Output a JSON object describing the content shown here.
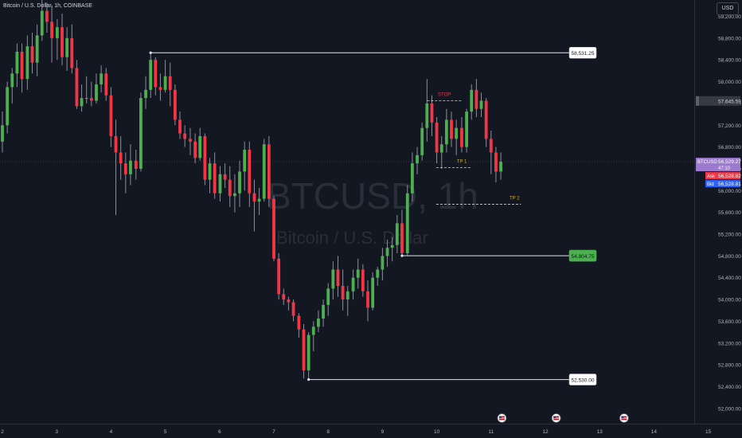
{
  "header": {
    "symbol_description": "Bitcoin / U.S. Dollar, 1h, COINBASE",
    "currency_button": "USD"
  },
  "watermark": {
    "ticker": "BTCUSD, 1h",
    "name": "Bitcoin / U.S. Dollar"
  },
  "colors": {
    "background": "#131722",
    "up": "#4caf50",
    "down": "#f23645",
    "grid": "#1e222d",
    "axis_text": "#b2b5be"
  },
  "icons": [
    "flag-us-icon",
    "flag-us-icon",
    "flag-us-icon"
  ],
  "chart_data": {
    "type": "candlestick",
    "timeframe": "1h",
    "xlabel": "",
    "ylabel": "",
    "ylim": [
      51720,
      59500
    ],
    "xlim": [
      2.0,
      15.05
    ],
    "x_ticks": [
      "2",
      "3",
      "4",
      "5",
      "6",
      "7",
      "8",
      "9",
      "10",
      "11",
      "12",
      "13",
      "14",
      "15"
    ],
    "y_ticks": [
      "52,000.00",
      "52,400.00",
      "52,800.00",
      "53,200.00",
      "53,600.00",
      "54,000.00",
      "54,400.00",
      "54,800.00",
      "55,200.00",
      "55,600.00",
      "56,000.00",
      "56,400.00",
      "56,800.00",
      "57,200.00",
      "57,600.00",
      "58,000.00",
      "58,400.00",
      "58,800.00",
      "59,200.00"
    ],
    "grid": false,
    "candles": [
      {
        "x": 2.0,
        "o": 56900,
        "h": 57450,
        "l": 56700,
        "c": 57200
      },
      {
        "x": 2.09,
        "o": 57200,
        "h": 58000,
        "l": 57050,
        "c": 57900
      },
      {
        "x": 2.18,
        "o": 57900,
        "h": 58250,
        "l": 57600,
        "c": 58150
      },
      {
        "x": 2.27,
        "o": 58150,
        "h": 58700,
        "l": 57900,
        "c": 58550
      },
      {
        "x": 2.36,
        "o": 58550,
        "h": 58700,
        "l": 57800,
        "c": 58050
      },
      {
        "x": 2.46,
        "o": 58050,
        "h": 58850,
        "l": 57850,
        "c": 58650
      },
      {
        "x": 2.55,
        "o": 58650,
        "h": 58900,
        "l": 58150,
        "c": 58350
      },
      {
        "x": 2.64,
        "o": 58350,
        "h": 59050,
        "l": 58100,
        "c": 58850
      },
      {
        "x": 2.73,
        "o": 58850,
        "h": 59500,
        "l": 58750,
        "c": 59300
      },
      {
        "x": 2.82,
        "o": 59300,
        "h": 59450,
        "l": 58900,
        "c": 59100
      },
      {
        "x": 2.91,
        "o": 59100,
        "h": 59400,
        "l": 58350,
        "c": 58800
      },
      {
        "x": 3.01,
        "o": 58800,
        "h": 59150,
        "l": 58400,
        "c": 59000
      },
      {
        "x": 3.1,
        "o": 59000,
        "h": 59250,
        "l": 58300,
        "c": 58450
      },
      {
        "x": 3.19,
        "o": 58450,
        "h": 59000,
        "l": 58200,
        "c": 58800
      },
      {
        "x": 3.28,
        "o": 58800,
        "h": 59050,
        "l": 58150,
        "c": 58250
      },
      {
        "x": 3.37,
        "o": 58250,
        "h": 58400,
        "l": 57500,
        "c": 57550
      },
      {
        "x": 3.46,
        "o": 57550,
        "h": 57950,
        "l": 57450,
        "c": 57700
      },
      {
        "x": 3.55,
        "o": 57700,
        "h": 58100,
        "l": 57600,
        "c": 57700
      },
      {
        "x": 3.64,
        "o": 57700,
        "h": 58000,
        "l": 57550,
        "c": 57650
      },
      {
        "x": 3.73,
        "o": 57650,
        "h": 58150,
        "l": 57600,
        "c": 57950
      },
      {
        "x": 3.82,
        "o": 57950,
        "h": 58300,
        "l": 57800,
        "c": 58150
      },
      {
        "x": 3.91,
        "o": 58150,
        "h": 58250,
        "l": 57650,
        "c": 57750
      },
      {
        "x": 4.0,
        "o": 57750,
        "h": 57900,
        "l": 56800,
        "c": 57000
      },
      {
        "x": 4.09,
        "o": 57000,
        "h": 57300,
        "l": 55550,
        "c": 56700
      },
      {
        "x": 4.18,
        "o": 56700,
        "h": 57000,
        "l": 56200,
        "c": 56500
      },
      {
        "x": 4.27,
        "o": 56500,
        "h": 56700,
        "l": 55950,
        "c": 56300
      },
      {
        "x": 4.36,
        "o": 56300,
        "h": 56850,
        "l": 56100,
        "c": 56550
      },
      {
        "x": 4.46,
        "o": 56550,
        "h": 56750,
        "l": 56200,
        "c": 56400
      },
      {
        "x": 4.55,
        "o": 56400,
        "h": 57800,
        "l": 56350,
        "c": 57700
      },
      {
        "x": 4.64,
        "o": 57700,
        "h": 58100,
        "l": 57500,
        "c": 57850
      },
      {
        "x": 4.73,
        "o": 57850,
        "h": 58530,
        "l": 57700,
        "c": 58400
      },
      {
        "x": 4.82,
        "o": 58400,
        "h": 58450,
        "l": 57750,
        "c": 57900
      },
      {
        "x": 4.91,
        "o": 57900,
        "h": 58150,
        "l": 57650,
        "c": 57850
      },
      {
        "x": 5.0,
        "o": 57850,
        "h": 58400,
        "l": 57800,
        "c": 58100
      },
      {
        "x": 5.09,
        "o": 58100,
        "h": 58350,
        "l": 57550,
        "c": 57850
      },
      {
        "x": 5.18,
        "o": 57850,
        "h": 57950,
        "l": 57200,
        "c": 57300
      },
      {
        "x": 5.27,
        "o": 57300,
        "h": 57450,
        "l": 56950,
        "c": 57050
      },
      {
        "x": 5.36,
        "o": 57050,
        "h": 57200,
        "l": 56800,
        "c": 56950
      },
      {
        "x": 5.46,
        "o": 56950,
        "h": 57150,
        "l": 56650,
        "c": 56900
      },
      {
        "x": 5.55,
        "o": 56900,
        "h": 57050,
        "l": 56500,
        "c": 56600
      },
      {
        "x": 5.64,
        "o": 56600,
        "h": 57150,
        "l": 56550,
        "c": 57000
      },
      {
        "x": 5.73,
        "o": 57000,
        "h": 57050,
        "l": 56100,
        "c": 56200
      },
      {
        "x": 5.82,
        "o": 56200,
        "h": 56600,
        "l": 55950,
        "c": 56500
      },
      {
        "x": 5.91,
        "o": 56500,
        "h": 56700,
        "l": 55850,
        "c": 55950
      },
      {
        "x": 6.01,
        "o": 55950,
        "h": 56450,
        "l": 55800,
        "c": 56300
      },
      {
        "x": 6.1,
        "o": 56300,
        "h": 56500,
        "l": 56050,
        "c": 56200
      },
      {
        "x": 6.19,
        "o": 56200,
        "h": 56450,
        "l": 55700,
        "c": 55900
      },
      {
        "x": 6.28,
        "o": 55900,
        "h": 56300,
        "l": 55600,
        "c": 55950
      },
      {
        "x": 6.37,
        "o": 55950,
        "h": 56550,
        "l": 55700,
        "c": 56350
      },
      {
        "x": 6.46,
        "o": 56350,
        "h": 56900,
        "l": 56000,
        "c": 56750
      },
      {
        "x": 6.55,
        "o": 56750,
        "h": 56900,
        "l": 55700,
        "c": 55950
      },
      {
        "x": 6.64,
        "o": 55950,
        "h": 56200,
        "l": 55250,
        "c": 55800
      },
      {
        "x": 6.73,
        "o": 55800,
        "h": 56050,
        "l": 55550,
        "c": 55850
      },
      {
        "x": 6.82,
        "o": 55850,
        "h": 56950,
        "l": 55800,
        "c": 56850
      },
      {
        "x": 6.91,
        "o": 56850,
        "h": 57000,
        "l": 55700,
        "c": 55850
      },
      {
        "x": 7.0,
        "o": 55850,
        "h": 55900,
        "l": 54700,
        "c": 54750
      },
      {
        "x": 7.09,
        "o": 54750,
        "h": 54850,
        "l": 54000,
        "c": 54100
      },
      {
        "x": 7.18,
        "o": 54100,
        "h": 54200,
        "l": 53900,
        "c": 54000
      },
      {
        "x": 7.27,
        "o": 54000,
        "h": 54050,
        "l": 53800,
        "c": 53950
      },
      {
        "x": 7.36,
        "o": 53950,
        "h": 54000,
        "l": 53600,
        "c": 53700
      },
      {
        "x": 7.46,
        "o": 53700,
        "h": 53750,
        "l": 53300,
        "c": 53450
      },
      {
        "x": 7.55,
        "o": 53450,
        "h": 53550,
        "l": 52550,
        "c": 52700
      },
      {
        "x": 7.64,
        "o": 52700,
        "h": 53400,
        "l": 52530,
        "c": 53350
      },
      {
        "x": 7.73,
        "o": 53350,
        "h": 53600,
        "l": 53050,
        "c": 53500
      },
      {
        "x": 7.82,
        "o": 53500,
        "h": 53800,
        "l": 53400,
        "c": 53650
      },
      {
        "x": 7.91,
        "o": 53650,
        "h": 54000,
        "l": 53500,
        "c": 53900
      },
      {
        "x": 8.0,
        "o": 53900,
        "h": 54300,
        "l": 53700,
        "c": 54200
      },
      {
        "x": 8.09,
        "o": 54200,
        "h": 54700,
        "l": 54000,
        "c": 54550
      },
      {
        "x": 8.18,
        "o": 54550,
        "h": 54800,
        "l": 54050,
        "c": 54250
      },
      {
        "x": 8.27,
        "o": 54250,
        "h": 54550,
        "l": 53800,
        "c": 54000
      },
      {
        "x": 8.36,
        "o": 54000,
        "h": 54250,
        "l": 53700,
        "c": 54150
      },
      {
        "x": 8.46,
        "o": 54150,
        "h": 54550,
        "l": 54000,
        "c": 54400
      },
      {
        "x": 8.55,
        "o": 54400,
        "h": 54750,
        "l": 54200,
        "c": 54550
      },
      {
        "x": 8.64,
        "o": 54550,
        "h": 54650,
        "l": 54050,
        "c": 54150
      },
      {
        "x": 8.73,
        "o": 54150,
        "h": 54350,
        "l": 53600,
        "c": 53850
      },
      {
        "x": 8.82,
        "o": 53850,
        "h": 54500,
        "l": 53800,
        "c": 54400
      },
      {
        "x": 8.91,
        "o": 54400,
        "h": 54600,
        "l": 54250,
        "c": 54550
      },
      {
        "x": 9.0,
        "o": 54550,
        "h": 54950,
        "l": 54350,
        "c": 54800
      },
      {
        "x": 9.09,
        "o": 54800,
        "h": 55100,
        "l": 54600,
        "c": 54950
      },
      {
        "x": 9.18,
        "o": 54950,
        "h": 55150,
        "l": 54700,
        "c": 55000
      },
      {
        "x": 9.27,
        "o": 55000,
        "h": 55550,
        "l": 54850,
        "c": 55400
      },
      {
        "x": 9.36,
        "o": 55400,
        "h": 55650,
        "l": 54804,
        "c": 54850
      },
      {
        "x": 9.46,
        "o": 54850,
        "h": 56100,
        "l": 54800,
        "c": 55950
      },
      {
        "x": 9.55,
        "o": 55950,
        "h": 56700,
        "l": 55800,
        "c": 56500
      },
      {
        "x": 9.64,
        "o": 56500,
        "h": 56800,
        "l": 56300,
        "c": 56650
      },
      {
        "x": 9.73,
        "o": 56650,
        "h": 57250,
        "l": 56550,
        "c": 57150
      },
      {
        "x": 9.82,
        "o": 57150,
        "h": 58050,
        "l": 56900,
        "c": 57600
      },
      {
        "x": 9.91,
        "o": 57600,
        "h": 57750,
        "l": 57000,
        "c": 57250
      },
      {
        "x": 10.0,
        "o": 57250,
        "h": 57350,
        "l": 56500,
        "c": 56700
      },
      {
        "x": 10.09,
        "o": 56700,
        "h": 57000,
        "l": 56400,
        "c": 56850
      },
      {
        "x": 10.18,
        "o": 56850,
        "h": 57500,
        "l": 56700,
        "c": 57300
      },
      {
        "x": 10.27,
        "o": 57300,
        "h": 57450,
        "l": 56800,
        "c": 56950
      },
      {
        "x": 10.36,
        "o": 56950,
        "h": 57300,
        "l": 56650,
        "c": 57150
      },
      {
        "x": 10.46,
        "o": 57150,
        "h": 57350,
        "l": 56700,
        "c": 56800
      },
      {
        "x": 10.55,
        "o": 56800,
        "h": 57500,
        "l": 56700,
        "c": 57450
      },
      {
        "x": 10.64,
        "o": 57450,
        "h": 57950,
        "l": 57300,
        "c": 57850
      },
      {
        "x": 10.73,
        "o": 57850,
        "h": 58050,
        "l": 57350,
        "c": 57500
      },
      {
        "x": 10.82,
        "o": 57500,
        "h": 57800,
        "l": 57350,
        "c": 57650
      },
      {
        "x": 10.91,
        "o": 57650,
        "h": 57700,
        "l": 56800,
        "c": 56950
      },
      {
        "x": 11.0,
        "o": 56950,
        "h": 57100,
        "l": 56300,
        "c": 56700
      },
      {
        "x": 11.09,
        "o": 56700,
        "h": 56800,
        "l": 56150,
        "c": 56350
      },
      {
        "x": 11.18,
        "o": 56350,
        "h": 56700,
        "l": 56200,
        "c": 56530
      }
    ],
    "annotations": {
      "horizontal_lines": [
        {
          "label": "58,531.25",
          "price": 58531.25,
          "x_start": 4.73
        },
        {
          "label": "54,804.75",
          "price": 54804.75,
          "x_start": 9.36
        },
        {
          "label": "52,530.00",
          "price": 52530.0,
          "x_start": 7.64
        }
      ],
      "levels": [
        {
          "label": "STOP",
          "price": 57650,
          "x_start": 9.82,
          "x_end": 10.46
        },
        {
          "label": "TP 1",
          "price": 56420,
          "x_start": 9.99,
          "x_end": 10.64
        },
        {
          "label": "TP 2",
          "price": 55750,
          "x_start": 9.99,
          "x_end": 11.55
        }
      ]
    },
    "price_labels": [
      {
        "label": "57,645.59"
      }
    ],
    "current_price": {
      "symbol": "BTCUSD",
      "price": "56,529.27",
      "countdown": "47:10",
      "ask_label": "Ask",
      "ask": "56,528.82",
      "bid_label": "Bid",
      "bid": "56,528.81"
    },
    "event_markers": [
      11.2,
      12.2,
      13.45
    ]
  }
}
